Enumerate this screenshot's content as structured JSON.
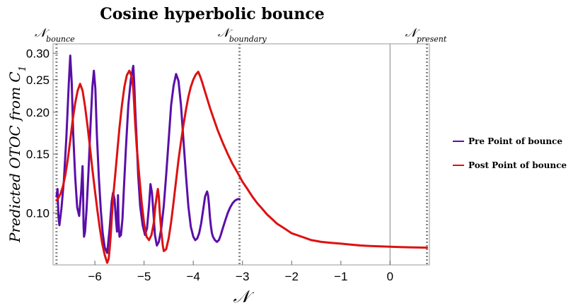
{
  "chart_data": {
    "type": "line",
    "title": "Cosine hyperbolic bounce",
    "xlabel": "𝒩",
    "ylabel": "Predicted OTOC from C",
    "ylabel_sub": "1",
    "xlim": [
      -6.85,
      0.8
    ],
    "ylim": [
      0.07,
      0.32
    ],
    "y_scale": "log",
    "x_ticks": [
      -6,
      -5,
      -4,
      -3,
      -2,
      -1,
      0
    ],
    "x_tick_labels": [
      "−6",
      "−5",
      "−4",
      "−3",
      "−2",
      "−1",
      "0"
    ],
    "y_ticks": [
      0.1,
      0.15,
      0.2,
      0.25,
      0.3
    ],
    "y_tick_labels": [
      "0.10",
      "0.15",
      "0.20",
      "0.25",
      "0.30"
    ],
    "grid": false,
    "legend_position": "right",
    "vertical_markers": [
      {
        "x": -6.78,
        "label": "𝒩",
        "sub": "bounce",
        "style": "dotted"
      },
      {
        "x": -3.06,
        "label": "𝒩",
        "sub": "boundary",
        "style": "dotted"
      },
      {
        "x": 0.0,
        "label": "",
        "sub": "",
        "style": "solid"
      },
      {
        "x": 0.75,
        "label": "𝒩",
        "sub": "present",
        "style": "dotted"
      }
    ],
    "series": [
      {
        "name": "Pre Point of bounce",
        "color": "#5a0fa8",
        "x": [
          -6.78,
          -6.76,
          -6.74,
          -6.72,
          -6.68,
          -6.63,
          -6.58,
          -6.53,
          -6.5,
          -6.47,
          -6.44,
          -6.4,
          -6.36,
          -6.32,
          -6.28,
          -6.25,
          -6.24,
          -6.23,
          -6.22,
          -6.2,
          -6.17,
          -6.13,
          -6.09,
          -6.05,
          -6.02,
          -5.99,
          -5.96,
          -5.92,
          -5.88,
          -5.84,
          -5.8,
          -5.75,
          -5.7,
          -5.66,
          -5.63,
          -5.6,
          -5.57,
          -5.55,
          -5.54,
          -5.53,
          -5.52,
          -5.5,
          -5.47,
          -5.44,
          -5.41,
          -5.37,
          -5.32,
          -5.27,
          -5.22,
          -5.2,
          -5.18,
          -5.15,
          -5.12,
          -5.08,
          -5.03,
          -4.98,
          -4.94,
          -4.9,
          -4.87,
          -4.84,
          -4.81,
          -4.78,
          -4.74,
          -4.7,
          -4.65,
          -4.6,
          -4.55,
          -4.5,
          -4.45,
          -4.4,
          -4.35,
          -4.3,
          -4.25,
          -4.2,
          -4.15,
          -4.1,
          -4.05,
          -4.0,
          -3.96,
          -3.92,
          -3.88,
          -3.84,
          -3.8,
          -3.76,
          -3.72,
          -3.7,
          -3.68,
          -3.66,
          -3.64,
          -3.62,
          -3.6,
          -3.56,
          -3.52,
          -3.48,
          -3.44,
          -3.4,
          -3.35,
          -3.3,
          -3.25,
          -3.2,
          -3.15,
          -3.1,
          -3.06
        ],
        "y": [
          0.112,
          0.118,
          0.098,
          0.092,
          0.103,
          0.125,
          0.168,
          0.245,
          0.295,
          0.245,
          0.172,
          0.128,
          0.104,
          0.098,
          0.115,
          0.138,
          0.118,
          0.092,
          0.085,
          0.088,
          0.102,
          0.133,
          0.182,
          0.238,
          0.266,
          0.235,
          0.172,
          0.128,
          0.102,
          0.087,
          0.079,
          0.076,
          0.09,
          0.108,
          0.115,
          0.11,
          0.095,
          0.088,
          0.098,
          0.113,
          0.095,
          0.085,
          0.086,
          0.096,
          0.118,
          0.155,
          0.21,
          0.25,
          0.275,
          0.245,
          0.205,
          0.165,
          0.13,
          0.105,
          0.092,
          0.086,
          0.09,
          0.105,
          0.122,
          0.115,
          0.1,
          0.086,
          0.08,
          0.082,
          0.09,
          0.105,
          0.13,
          0.165,
          0.21,
          0.24,
          0.26,
          0.248,
          0.21,
          0.165,
          0.13,
          0.105,
          0.091,
          0.085,
          0.083,
          0.084,
          0.087,
          0.093,
          0.102,
          0.112,
          0.116,
          0.113,
          0.106,
          0.097,
          0.091,
          0.087,
          0.085,
          0.083,
          0.082,
          0.083,
          0.086,
          0.09,
          0.095,
          0.1,
          0.104,
          0.107,
          0.109,
          0.11,
          0.11
        ]
      },
      {
        "name": "Post Point of bounce",
        "color": "#dd1111",
        "x": [
          -6.78,
          -6.74,
          -6.7,
          -6.65,
          -6.6,
          -6.55,
          -6.5,
          -6.45,
          -6.4,
          -6.35,
          -6.3,
          -6.25,
          -6.2,
          -6.15,
          -6.1,
          -6.05,
          -6.0,
          -5.95,
          -5.9,
          -5.85,
          -5.8,
          -5.75,
          -5.72,
          -5.7,
          -5.68,
          -5.66,
          -5.64,
          -5.62,
          -5.58,
          -5.54,
          -5.5,
          -5.45,
          -5.4,
          -5.35,
          -5.3,
          -5.25,
          -5.22,
          -5.2,
          -5.18,
          -5.15,
          -5.1,
          -5.05,
          -5.0,
          -4.95,
          -4.9,
          -4.85,
          -4.8,
          -4.77,
          -4.74,
          -4.72,
          -4.7,
          -4.68,
          -4.65,
          -4.62,
          -4.6,
          -4.55,
          -4.5,
          -4.45,
          -4.4,
          -4.35,
          -4.3,
          -4.25,
          -4.2,
          -4.15,
          -4.1,
          -4.05,
          -4.0,
          -3.95,
          -3.9,
          -3.86,
          -3.82,
          -3.78,
          -3.72,
          -3.66,
          -3.6,
          -3.5,
          -3.4,
          -3.3,
          -3.2,
          -3.1,
          -3.0,
          -2.9,
          -2.8,
          -2.7,
          -2.6,
          -2.5,
          -2.4,
          -2.3,
          -2.2,
          -2.1,
          -2.0,
          -1.8,
          -1.6,
          -1.4,
          -1.2,
          -1.0,
          -0.8,
          -0.6,
          -0.4,
          -0.2,
          0.0,
          0.2,
          0.4,
          0.6,
          0.75
        ],
        "y": [
          0.109,
          0.111,
          0.114,
          0.12,
          0.13,
          0.145,
          0.165,
          0.19,
          0.213,
          0.232,
          0.243,
          0.232,
          0.208,
          0.182,
          0.157,
          0.135,
          0.117,
          0.102,
          0.09,
          0.081,
          0.075,
          0.071,
          0.073,
          0.078,
          0.085,
          0.095,
          0.105,
          0.115,
          0.133,
          0.155,
          0.18,
          0.21,
          0.238,
          0.258,
          0.266,
          0.255,
          0.235,
          0.21,
          0.185,
          0.158,
          0.13,
          0.108,
          0.093,
          0.085,
          0.083,
          0.086,
          0.094,
          0.105,
          0.113,
          0.118,
          0.112,
          0.1,
          0.088,
          0.08,
          0.077,
          0.078,
          0.084,
          0.094,
          0.108,
          0.125,
          0.144,
          0.163,
          0.183,
          0.203,
          0.222,
          0.238,
          0.25,
          0.259,
          0.264,
          0.256,
          0.246,
          0.235,
          0.22,
          0.206,
          0.194,
          0.176,
          0.162,
          0.15,
          0.14,
          0.132,
          0.124,
          0.118,
          0.112,
          0.107,
          0.103,
          0.099,
          0.096,
          0.093,
          0.091,
          0.089,
          0.087,
          0.085,
          0.083,
          0.082,
          0.0815,
          0.081,
          0.0805,
          0.08,
          0.0797,
          0.0795,
          0.0793,
          0.0791,
          0.079,
          0.0789,
          0.0788
        ]
      }
    ]
  }
}
